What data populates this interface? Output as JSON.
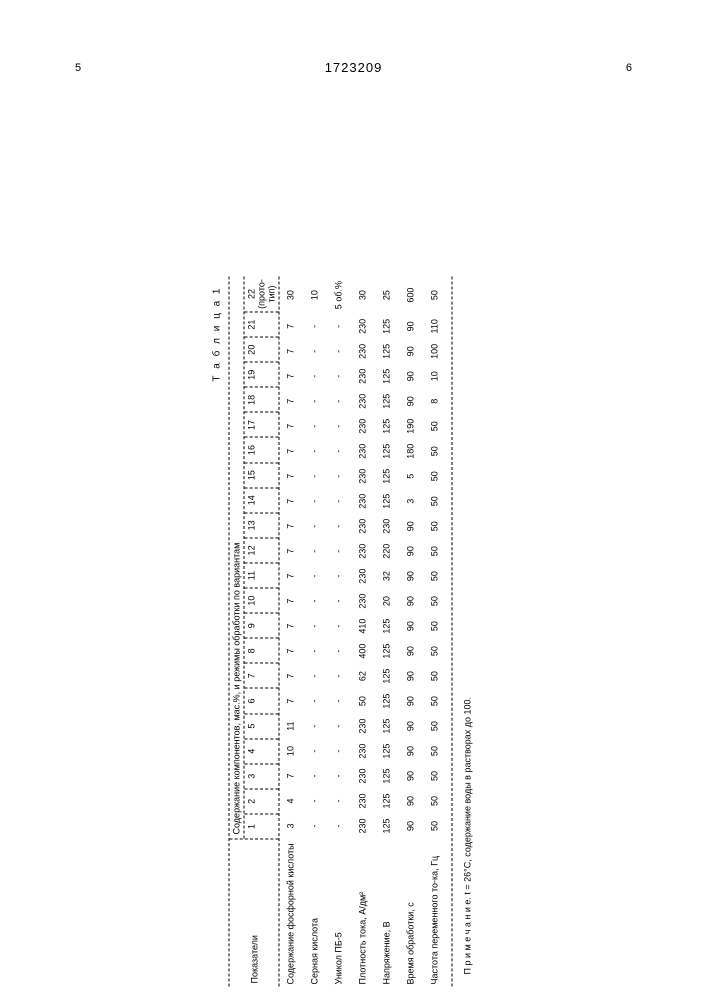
{
  "header": {
    "page_left": "5",
    "page_right": "6",
    "doc_number": "1723209"
  },
  "table": {
    "caption": "Т а б л и ц а 1",
    "col_header": "Показатели",
    "span_header": "Содержание компонентов, мас.%, и режимы обработки по вариантам",
    "columns": [
      "1",
      "2",
      "3",
      "4",
      "5",
      "6",
      "7",
      "8",
      "9",
      "10",
      "11",
      "12",
      "13",
      "14",
      "15",
      "16",
      "17",
      "18",
      "19",
      "20",
      "21",
      "22 (прото-тип)"
    ],
    "rows": [
      {
        "label": "Содержание фосфорной кислоты",
        "vals": [
          "3",
          "4",
          "7",
          "10",
          "11",
          "7",
          "7",
          "7",
          "7",
          "7",
          "7",
          "7",
          "7",
          "7",
          "7",
          "7",
          "7",
          "7",
          "7",
          "7",
          "7",
          "30"
        ]
      },
      {
        "label": "Серная кислота",
        "vals": [
          "-",
          "-",
          "-",
          "-",
          "-",
          "-",
          "-",
          "-",
          "-",
          "-",
          "-",
          "-",
          "-",
          "-",
          "-",
          "-",
          "-",
          "-",
          "-",
          "-",
          "-",
          "10"
        ]
      },
      {
        "label": "Уникол ПБ-5",
        "vals": [
          "-",
          "-",
          "-",
          "-",
          "-",
          "-",
          "-",
          "-",
          "-",
          "-",
          "-",
          "-",
          "-",
          "-",
          "-",
          "-",
          "-",
          "-",
          "-",
          "-",
          "-",
          "5 об.%"
        ]
      },
      {
        "label": "Плотность тока, А/дм²",
        "vals": [
          "230",
          "230",
          "230",
          "230",
          "230",
          "50",
          "62",
          "400",
          "410",
          "230",
          "230",
          "230",
          "230",
          "230",
          "230",
          "230",
          "230",
          "230",
          "230",
          "230",
          "230",
          "30"
        ]
      },
      {
        "label": "Напряжение, В",
        "vals": [
          "125",
          "125",
          "125",
          "125",
          "125",
          "125",
          "125",
          "125",
          "125",
          "20",
          "32",
          "220",
          "230",
          "125",
          "125",
          "125",
          "125",
          "125",
          "125",
          "125",
          "125",
          "25"
        ]
      },
      {
        "label": "Время обработки, с",
        "vals": [
          "90",
          "90",
          "90",
          "90",
          "90",
          "90",
          "90",
          "90",
          "90",
          "90",
          "90",
          "90",
          "90",
          "3",
          "5",
          "180",
          "190",
          "90",
          "90",
          "90",
          "90",
          "600"
        ]
      },
      {
        "label": "Частота переменного то-ка, Гц",
        "vals": [
          "50",
          "50",
          "50",
          "50",
          "50",
          "50",
          "50",
          "50",
          "50",
          "50",
          "50",
          "50",
          "50",
          "50",
          "50",
          "50",
          "50",
          "8",
          "10",
          "100",
          "110",
          "50"
        ]
      }
    ],
    "footnote": "П р и м е ч а н и е. t = 26°C, содержание воды в растворах до 100."
  }
}
